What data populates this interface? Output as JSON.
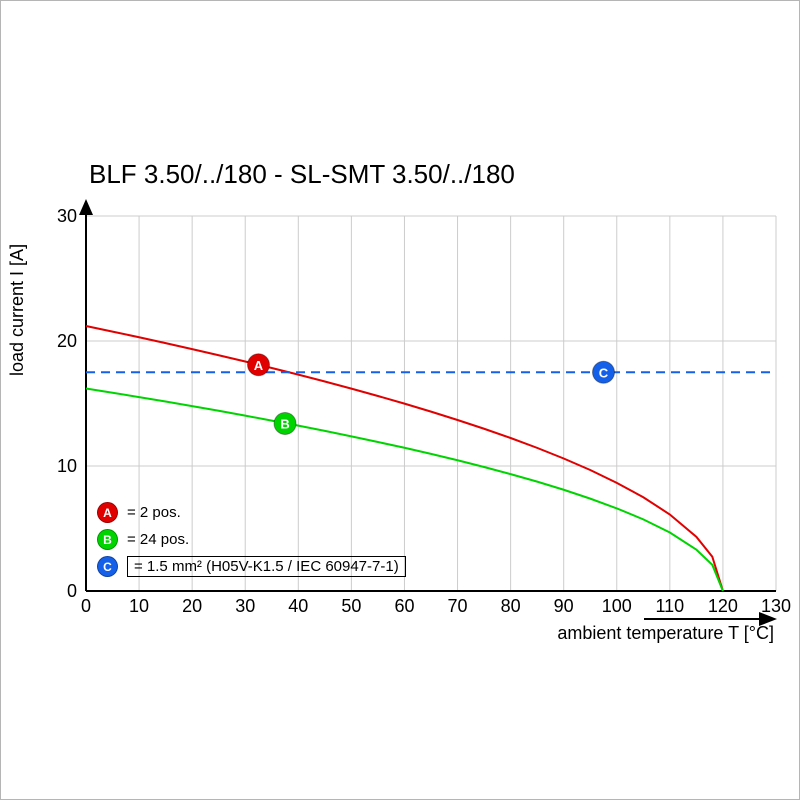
{
  "title": "BLF 3.50/../180 - SL-SMT 3.50/../180",
  "chart_data": {
    "type": "line",
    "title": "BLF 3.50/../180 - SL-SMT 3.50/../180",
    "xlabel": "ambient temperature T [°C]",
    "ylabel": "load current I [A]",
    "xlim": [
      0,
      130
    ],
    "ylim": [
      0,
      30
    ],
    "xticks": [
      0,
      10,
      20,
      30,
      40,
      50,
      60,
      70,
      80,
      90,
      100,
      110,
      120,
      130
    ],
    "yticks": [
      0,
      10,
      20,
      30
    ],
    "grid": true,
    "grid_color": "#cccccc",
    "axis_color": "#000000",
    "legend_position": "inside-bottom-left",
    "series": [
      {
        "name": "A",
        "legend": "= 2 pos.",
        "color": "#e10000",
        "dashed": false,
        "x": [
          0,
          5,
          10,
          15,
          20,
          25,
          30,
          35,
          40,
          45,
          50,
          55,
          60,
          65,
          70,
          75,
          80,
          85,
          90,
          95,
          100,
          105,
          110,
          115,
          118,
          120
        ],
        "y": [
          21.2,
          20.75,
          20.3,
          19.83,
          19.35,
          18.86,
          18.36,
          17.84,
          17.31,
          16.76,
          16.19,
          15.6,
          14.99,
          14.35,
          13.68,
          12.98,
          12.24,
          11.45,
          10.6,
          9.68,
          8.65,
          7.5,
          6.12,
          4.33,
          2.74,
          0
        ],
        "marker": {
          "x": 32.5,
          "y": 18.1,
          "label": "A"
        }
      },
      {
        "name": "B",
        "legend": "= 24 pos.",
        "color": "#00d400",
        "dashed": false,
        "x": [
          0,
          5,
          10,
          15,
          20,
          25,
          30,
          35,
          40,
          45,
          50,
          55,
          60,
          65,
          70,
          75,
          80,
          85,
          90,
          95,
          100,
          105,
          110,
          115,
          118,
          120
        ],
        "y": [
          16.2,
          15.86,
          15.51,
          15.16,
          14.79,
          14.42,
          14.03,
          13.63,
          13.23,
          12.81,
          12.37,
          11.92,
          11.46,
          10.97,
          10.46,
          9.92,
          9.35,
          8.75,
          8.1,
          7.39,
          6.61,
          5.73,
          4.68,
          3.31,
          2.09,
          0
        ],
        "marker": {
          "x": 37.5,
          "y": 13.4,
          "label": "B"
        }
      },
      {
        "name": "C",
        "legend": "= 1.5 mm² (H05V-K1.5 / IEC 60947-7-1)",
        "color": "#1560e8",
        "dashed": true,
        "x": [
          0,
          130
        ],
        "y": [
          17.5,
          17.5
        ],
        "marker": {
          "x": 97.5,
          "y": 17.5,
          "label": "C"
        }
      }
    ]
  },
  "legend": {
    "items": [
      {
        "id": "A",
        "color": "#e10000",
        "text": "= 2 pos.",
        "boxed": false
      },
      {
        "id": "B",
        "color": "#00d400",
        "text": "= 24 pos.",
        "boxed": false
      },
      {
        "id": "C",
        "color": "#1560e8",
        "text": "= 1.5 mm² (H05V-K1.5 / IEC 60947-7-1)",
        "boxed": true
      }
    ]
  }
}
